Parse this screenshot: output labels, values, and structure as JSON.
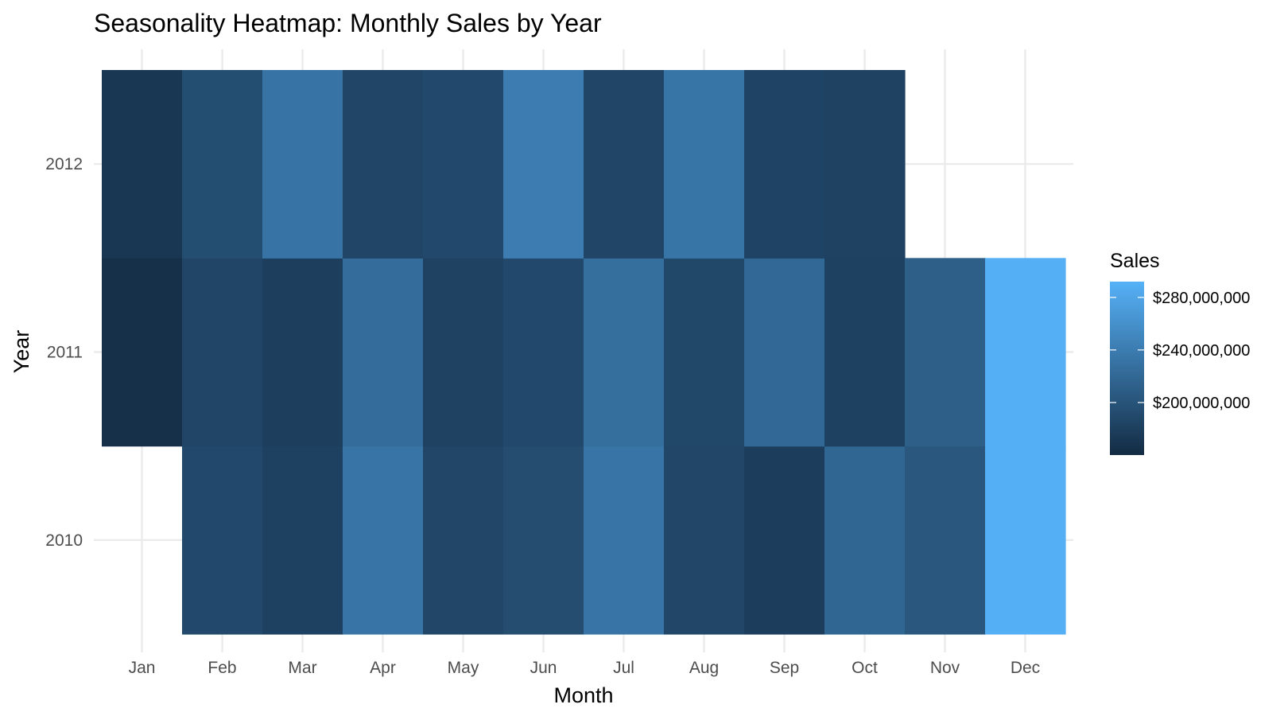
{
  "chart_data": {
    "type": "heatmap",
    "title": "Seasonality Heatmap: Monthly Sales by Year",
    "xlabel": "Month",
    "ylabel": "Year",
    "x_categories": [
      "Jan",
      "Feb",
      "Mar",
      "Apr",
      "May",
      "Jun",
      "Jul",
      "Aug",
      "Sep",
      "Oct",
      "Nov",
      "Dec"
    ],
    "y_categories": [
      "2010",
      "2011",
      "2012"
    ],
    "cells": [
      {
        "year": "2010",
        "month": "Feb",
        "value": 190000000
      },
      {
        "year": "2010",
        "month": "Mar",
        "value": 182000000
      },
      {
        "year": "2010",
        "month": "Apr",
        "value": 232000000
      },
      {
        "year": "2010",
        "month": "May",
        "value": 187000000
      },
      {
        "year": "2010",
        "month": "Jun",
        "value": 193000000
      },
      {
        "year": "2010",
        "month": "Jul",
        "value": 232000000
      },
      {
        "year": "2010",
        "month": "Aug",
        "value": 187000000
      },
      {
        "year": "2010",
        "month": "Sep",
        "value": 178000000
      },
      {
        "year": "2010",
        "month": "Oct",
        "value": 218000000
      },
      {
        "year": "2010",
        "month": "Nov",
        "value": 203000000
      },
      {
        "year": "2010",
        "month": "Dec",
        "value": 290000000
      },
      {
        "year": "2011",
        "month": "Jan",
        "value": 165000000
      },
      {
        "year": "2011",
        "month": "Feb",
        "value": 186000000
      },
      {
        "year": "2011",
        "month": "Mar",
        "value": 179000000
      },
      {
        "year": "2011",
        "month": "Apr",
        "value": 225000000
      },
      {
        "year": "2011",
        "month": "May",
        "value": 183000000
      },
      {
        "year": "2011",
        "month": "Jun",
        "value": 189000000
      },
      {
        "year": "2011",
        "month": "Jul",
        "value": 227000000
      },
      {
        "year": "2011",
        "month": "Aug",
        "value": 188000000
      },
      {
        "year": "2011",
        "month": "Sep",
        "value": 220000000
      },
      {
        "year": "2011",
        "month": "Oct",
        "value": 182000000
      },
      {
        "year": "2011",
        "month": "Nov",
        "value": 211000000
      },
      {
        "year": "2011",
        "month": "Dec",
        "value": 290000000
      },
      {
        "year": "2012",
        "month": "Jan",
        "value": 171000000
      },
      {
        "year": "2012",
        "month": "Feb",
        "value": 194000000
      },
      {
        "year": "2012",
        "month": "Mar",
        "value": 231000000
      },
      {
        "year": "2012",
        "month": "Apr",
        "value": 186000000
      },
      {
        "year": "2012",
        "month": "May",
        "value": 189000000
      },
      {
        "year": "2012",
        "month": "Jun",
        "value": 240000000
      },
      {
        "year": "2012",
        "month": "Jul",
        "value": 186000000
      },
      {
        "year": "2012",
        "month": "Aug",
        "value": 233000000
      },
      {
        "year": "2012",
        "month": "Sep",
        "value": 184000000
      },
      {
        "year": "2012",
        "month": "Oct",
        "value": 183000000
      }
    ],
    "color_scale": {
      "title": "Sales",
      "low_color": "#132B43",
      "high_color": "#56B1F7",
      "min": 160000000,
      "max": 292000000,
      "breaks": [
        200000000,
        240000000,
        280000000
      ],
      "break_labels": [
        "$200,000,000",
        "$240,000,000",
        "$280,000,000"
      ]
    },
    "grid": true,
    "legend_position": "right"
  }
}
